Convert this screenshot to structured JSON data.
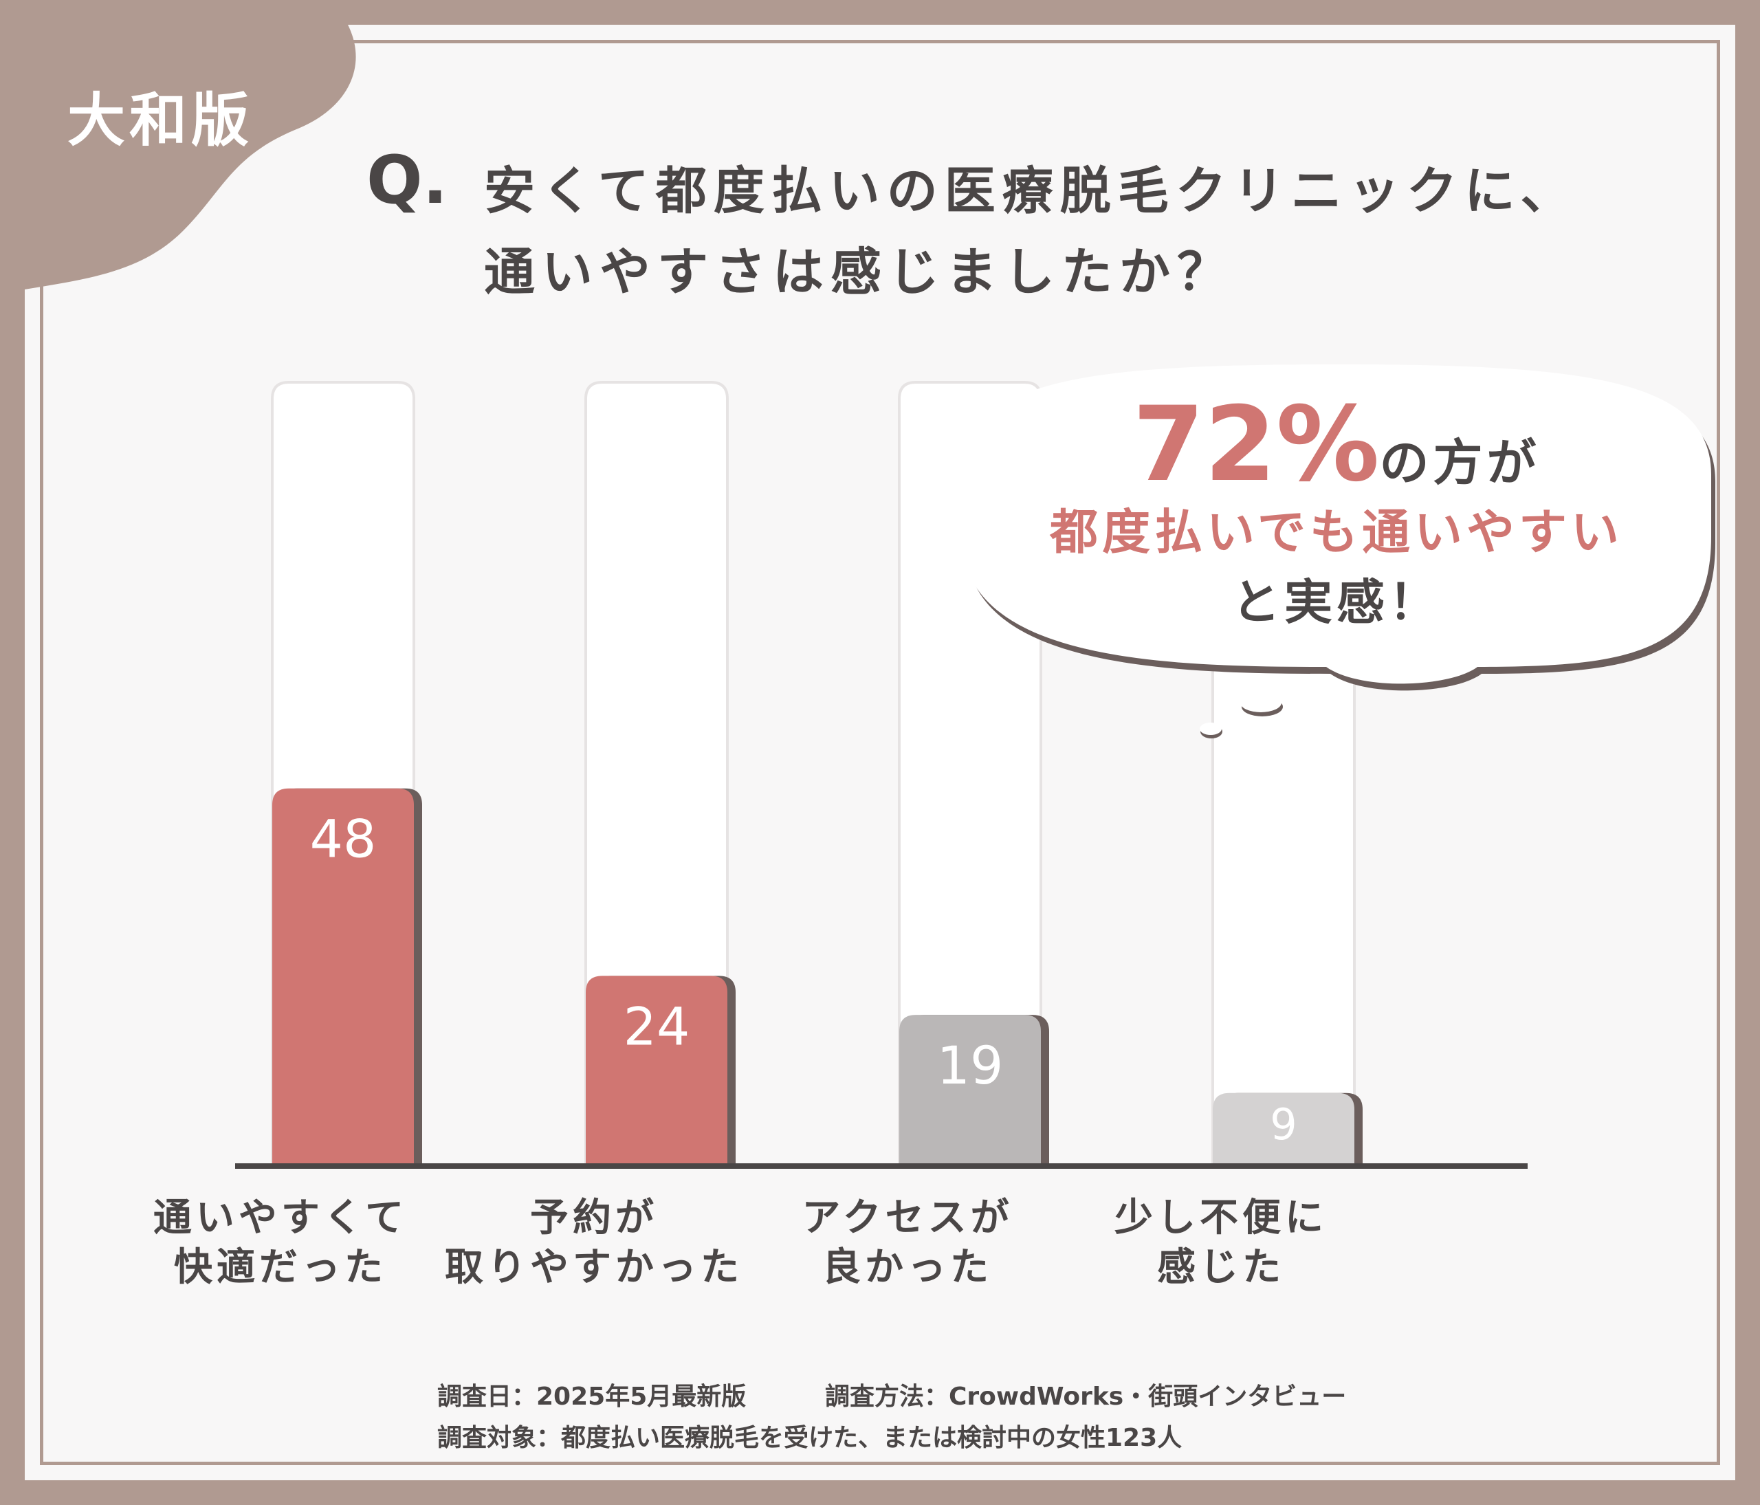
{
  "corner_label": "大和版",
  "question": {
    "mark": "Q.",
    "line1": "安くて都度払いの医療脱毛クリニックに、",
    "line2": "通いやすさは感じましたか？"
  },
  "callout": {
    "percent": "72%",
    "line1_suffix": "の方が",
    "line2": "都度払いでも通いやすい",
    "line3": "と実感！"
  },
  "chart_data": {
    "type": "bar",
    "categories": [
      {
        "line1": "通いやすくて",
        "line2": "快適だった"
      },
      {
        "line1": "予約が",
        "line2": "取りやすかった"
      },
      {
        "line1": "アクセスが",
        "line2": "良かった"
      },
      {
        "line1": "少し不便に",
        "line2": "感じた"
      }
    ],
    "values": [
      48,
      24,
      19,
      9
    ],
    "value_labels": [
      "48",
      "24",
      "19",
      "9"
    ],
    "bar_colors": [
      "#d07672",
      "#d07672",
      "#bab7b7",
      "#d4d2d2"
    ],
    "ylim": [
      0,
      100
    ]
  },
  "footnotes": {
    "survey_date": "調査日：2025年5月最新版",
    "survey_method": "調査方法：CrowdWorks・街頭インタビュー",
    "survey_target": "調査対象：都度払い医療脱毛を受けた、または検討中の女性123人"
  },
  "colors": {
    "frame": "#b09a91",
    "accent": "#d07672",
    "text": "#4a4646",
    "axis": "#4a4646"
  }
}
